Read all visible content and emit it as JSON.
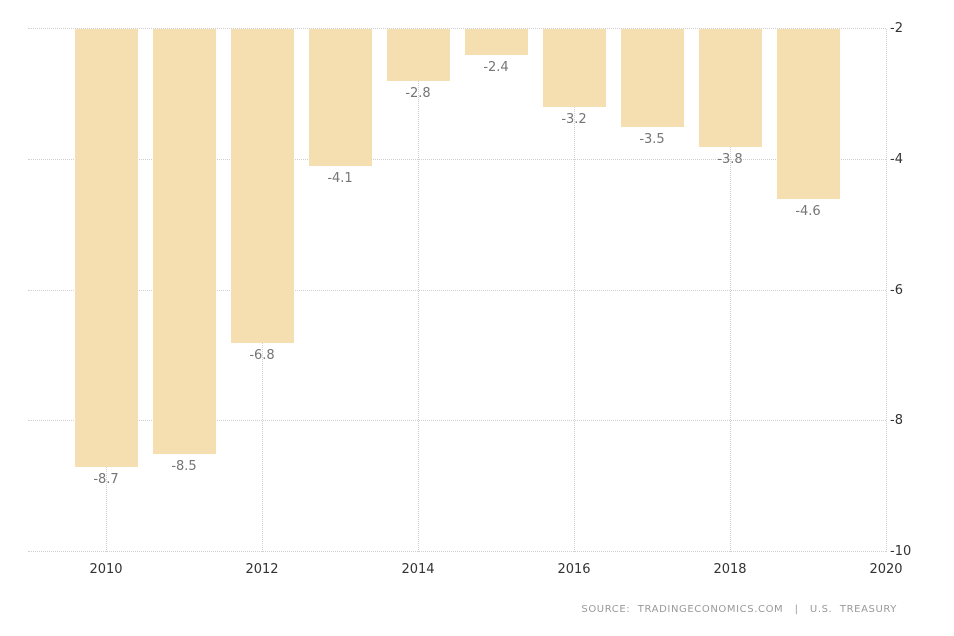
{
  "chart_data": {
    "type": "bar",
    "title": "",
    "xlabel": "",
    "ylabel": "",
    "categories": [
      "2010",
      "2011",
      "2012",
      "2013",
      "2014",
      "2015",
      "2016",
      "2017",
      "2018",
      "2019"
    ],
    "x": [
      2010,
      2011,
      2012,
      2013,
      2014,
      2015,
      2016,
      2017,
      2018,
      2019
    ],
    "values": [
      -8.7,
      -8.5,
      -6.8,
      -4.1,
      -2.8,
      -2.4,
      -3.2,
      -3.5,
      -3.8,
      -4.6
    ],
    "bar_labels": [
      "-8.7",
      "-8.5",
      "-6.8",
      "-4.1",
      "-2.8",
      "-2.4",
      "-3.2",
      "-3.5",
      "-3.8",
      "-4.6"
    ],
    "x_tick_years": [
      2010,
      2012,
      2014,
      2016,
      2018,
      2020
    ],
    "x_tick_labels": [
      "2010",
      "2012",
      "2014",
      "2016",
      "2018",
      "2020"
    ],
    "y_ticks": [
      -2,
      -4,
      -6,
      -8,
      -10
    ],
    "y_tick_labels": [
      "-2",
      "-4",
      "-6",
      "-8",
      "-10"
    ],
    "ylim": [
      -10,
      -2
    ],
    "xlim": [
      2009,
      2020
    ],
    "grid": "dotted",
    "legend": "none",
    "y_axis_side": "right",
    "bars_hang_from_top": true
  },
  "footer": {
    "source_text": "SOURCE:  TRADINGECONOMICS.COM   |   U.S.  TREASURY"
  },
  "colors": {
    "background": "#ffffff",
    "bar_fill": "#f5dfb1",
    "grid": "#d0d0d0",
    "tick_label": "#333333",
    "value_label": "#757575",
    "source": "#999999"
  }
}
